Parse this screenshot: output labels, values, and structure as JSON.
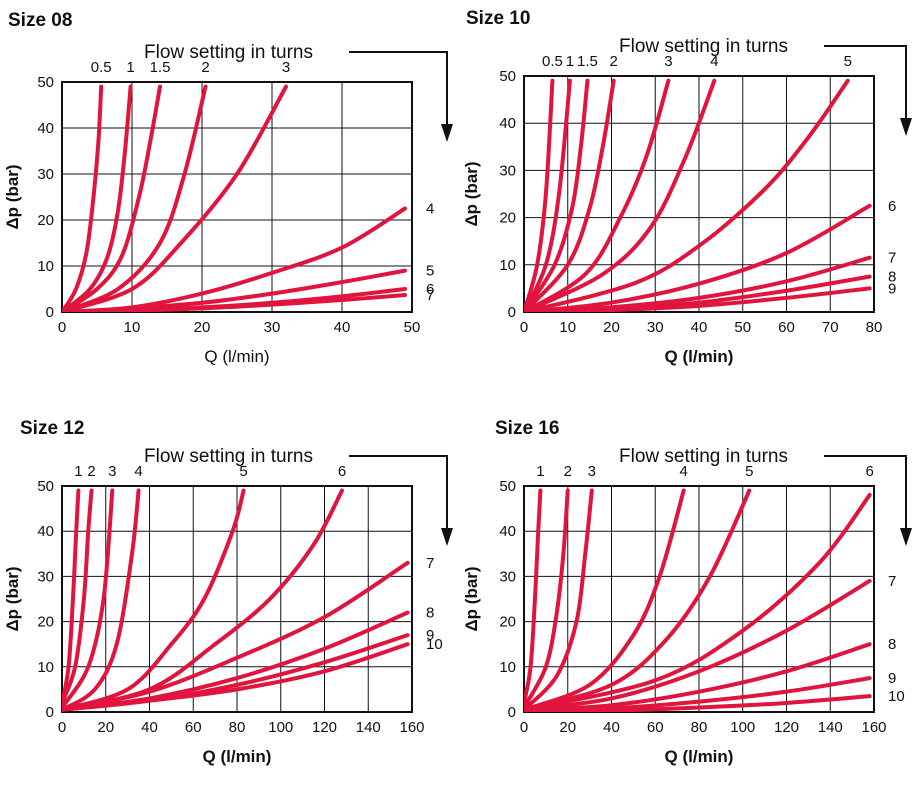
{
  "chart_data": [
    {
      "type": "line",
      "title": "Size 08",
      "annotation": "Flow setting in turns",
      "xlabel": "Q (l/min)",
      "ylabel": "Δp (bar)",
      "xlim": [
        0,
        50
      ],
      "ylim": [
        0,
        50
      ],
      "xticks": [
        0,
        10,
        20,
        30,
        40,
        50
      ],
      "yticks": [
        0,
        10,
        20,
        30,
        40,
        50
      ],
      "grid": true,
      "line_color": "#e0143c",
      "series": [
        {
          "name": "0.5",
          "label_pos": "top",
          "x": [
            0,
            2,
            3.5,
            4.5,
            5.2,
            5.6
          ],
          "y": [
            0,
            5,
            13,
            25,
            37,
            49
          ]
        },
        {
          "name": "1",
          "label_pos": "top",
          "x": [
            0,
            4,
            6.5,
            8,
            9,
            9.8
          ],
          "y": [
            0,
            5,
            12,
            22,
            35,
            49
          ]
        },
        {
          "name": "1.5",
          "label_pos": "top",
          "x": [
            0,
            5,
            8.5,
            11,
            12.6,
            14
          ],
          "y": [
            0,
            5,
            12,
            25,
            37,
            49
          ]
        },
        {
          "name": "2",
          "label_pos": "top",
          "x": [
            0,
            8,
            14,
            17.5,
            20.5
          ],
          "y": [
            0,
            5,
            15,
            30,
            49
          ]
        },
        {
          "name": "3",
          "label_pos": "top",
          "x": [
            0,
            10,
            17,
            25,
            32
          ],
          "y": [
            0,
            5,
            15,
            30,
            49
          ]
        },
        {
          "name": "4",
          "label_pos": "right",
          "x": [
            0,
            10,
            20,
            30,
            40,
            49
          ],
          "y": [
            0,
            1,
            4,
            8.5,
            14,
            22.5
          ]
        },
        {
          "name": "5",
          "label_pos": "right",
          "x": [
            0,
            10,
            20,
            30,
            40,
            49
          ],
          "y": [
            0,
            0.8,
            2,
            4,
            6.5,
            9
          ]
        },
        {
          "name": "6",
          "label_pos": "right",
          "x": [
            0,
            10,
            20,
            30,
            40,
            49
          ],
          "y": [
            0,
            0.4,
            1,
            2,
            3.4,
            5
          ]
        },
        {
          "name": "7",
          "label_pos": "right",
          "x": [
            0,
            10,
            20,
            30,
            40,
            49
          ],
          "y": [
            0,
            0.3,
            0.8,
            1.6,
            2.6,
            3.7
          ]
        }
      ]
    },
    {
      "type": "line",
      "title": "Size 10",
      "annotation": "Flow setting in turns",
      "xlabel": "Q (l/min)",
      "ylabel": "Δp (bar)",
      "xlim": [
        0,
        80
      ],
      "ylim": [
        0,
        50
      ],
      "xticks": [
        0,
        10,
        20,
        30,
        40,
        50,
        60,
        70,
        80
      ],
      "yticks": [
        0,
        10,
        20,
        30,
        40,
        50
      ],
      "grid": true,
      "line_color": "#e0143c",
      "series": [
        {
          "name": "0.5",
          "label_pos": "top",
          "x": [
            0,
            3,
            5,
            6.5
          ],
          "y": [
            0,
            10,
            25,
            49
          ]
        },
        {
          "name": "1",
          "label_pos": "top",
          "x": [
            0,
            5,
            8,
            10.5
          ],
          "y": [
            0,
            10,
            25,
            49
          ]
        },
        {
          "name": "1.5",
          "label_pos": "top",
          "x": [
            0,
            7,
            11,
            13,
            14.5
          ],
          "y": [
            0,
            10,
            22,
            35,
            49
          ]
        },
        {
          "name": "2",
          "label_pos": "top",
          "x": [
            0,
            10,
            15,
            18,
            20.5
          ],
          "y": [
            0,
            10,
            22,
            35,
            49
          ]
        },
        {
          "name": "3",
          "label_pos": "top",
          "x": [
            0,
            14,
            22,
            28,
            33
          ],
          "y": [
            0,
            8,
            20,
            33,
            49
          ]
        },
        {
          "name": "4",
          "label_pos": "top",
          "x": [
            0,
            18,
            29,
            37,
            43.5
          ],
          "y": [
            0,
            8,
            18,
            33,
            49
          ]
        },
        {
          "name": "5",
          "label_pos": "top",
          "x": [
            0,
            25,
            40,
            55,
            65,
            74
          ],
          "y": [
            0,
            6,
            14,
            26,
            37,
            49
          ]
        },
        {
          "name": "6",
          "label_pos": "right",
          "x": [
            0,
            20,
            40,
            60,
            79
          ],
          "y": [
            0,
            2,
            6,
            12.5,
            22.5
          ]
        },
        {
          "name": "7",
          "label_pos": "right",
          "x": [
            0,
            20,
            40,
            60,
            79
          ],
          "y": [
            0,
            1,
            3,
            6.5,
            11.5
          ]
        },
        {
          "name": "8",
          "label_pos": "right",
          "x": [
            0,
            20,
            40,
            60,
            79
          ],
          "y": [
            0,
            0.6,
            2,
            4.5,
            7.5
          ]
        },
        {
          "name": "9",
          "label_pos": "right",
          "x": [
            0,
            20,
            40,
            60,
            79
          ],
          "y": [
            0,
            0.4,
            1.3,
            3,
            5
          ]
        }
      ]
    },
    {
      "type": "line",
      "title": "Size 12",
      "annotation": "Flow setting in turns",
      "xlabel": "Q (l/min)",
      "ylabel": "Δp (bar)",
      "xlim": [
        0,
        160
      ],
      "ylim": [
        0,
        50
      ],
      "xticks": [
        0,
        20,
        40,
        60,
        80,
        100,
        120,
        140,
        160
      ],
      "yticks": [
        0,
        10,
        20,
        30,
        40,
        50
      ],
      "grid": true,
      "line_color": "#e0143c",
      "series": [
        {
          "name": "1",
          "label_pos": "top",
          "x": [
            0,
            3,
            5,
            6.5,
            7.5
          ],
          "y": [
            2,
            10,
            25,
            40,
            49
          ]
        },
        {
          "name": "2",
          "label_pos": "top",
          "x": [
            0,
            6,
            10,
            12,
            13.5
          ],
          "y": [
            2,
            10,
            25,
            40,
            49
          ]
        },
        {
          "name": "3",
          "label_pos": "top",
          "x": [
            0,
            12,
            19,
            23
          ],
          "y": [
            1,
            10,
            25,
            49
          ]
        },
        {
          "name": "4",
          "label_pos": "top",
          "x": [
            0,
            15,
            25,
            32,
            35
          ],
          "y": [
            0.5,
            5,
            15,
            35,
            49
          ]
        },
        {
          "name": "5",
          "label_pos": "top",
          "x": [
            0,
            30,
            50,
            65,
            78,
            83
          ],
          "y": [
            0.5,
            5,
            15,
            25,
            40,
            49
          ]
        },
        {
          "name": "6",
          "label_pos": "top",
          "x": [
            0,
            40,
            70,
            95,
            115,
            128
          ],
          "y": [
            0.5,
            5,
            15,
            25,
            37,
            49
          ]
        },
        {
          "name": "7",
          "label_pos": "right",
          "x": [
            0,
            40,
            80,
            120,
            158
          ],
          "y": [
            0.5,
            4.5,
            12,
            21,
            33
          ]
        },
        {
          "name": "8",
          "label_pos": "right",
          "x": [
            0,
            40,
            80,
            120,
            158
          ],
          "y": [
            0.5,
            3,
            7.5,
            14,
            22
          ]
        },
        {
          "name": "9",
          "label_pos": "right",
          "x": [
            0,
            40,
            80,
            120,
            158
          ],
          "y": [
            0.5,
            2.5,
            6,
            11,
            17
          ]
        },
        {
          "name": "10",
          "label_pos": "right",
          "x": [
            0,
            40,
            80,
            120,
            158
          ],
          "y": [
            0.5,
            2.5,
            5,
            9,
            15
          ]
        }
      ]
    },
    {
      "type": "line",
      "title": "Size 16",
      "annotation": "Flow setting in turns",
      "xlabel": "Q (l/min)",
      "ylabel": "Δp (bar)",
      "xlim": [
        0,
        160
      ],
      "ylim": [
        0,
        50
      ],
      "xticks": [
        0,
        20,
        40,
        60,
        80,
        100,
        120,
        140,
        160
      ],
      "yticks": [
        0,
        10,
        20,
        30,
        40,
        50
      ],
      "grid": true,
      "line_color": "#e0143c",
      "series": [
        {
          "name": "1",
          "label_pos": "top",
          "x": [
            0,
            3,
            5,
            6.5,
            7.5
          ],
          "y": [
            2,
            10,
            25,
            40,
            49
          ]
        },
        {
          "name": "2",
          "label_pos": "top",
          "x": [
            0,
            10,
            15,
            18,
            20
          ],
          "y": [
            1,
            10,
            22,
            35,
            49
          ]
        },
        {
          "name": "3",
          "label_pos": "top",
          "x": [
            0,
            15,
            24,
            28,
            31
          ],
          "y": [
            0.5,
            8,
            20,
            35,
            49
          ]
        },
        {
          "name": "4",
          "label_pos": "top",
          "x": [
            0,
            30,
            50,
            62,
            73
          ],
          "y": [
            0.5,
            6,
            17,
            30,
            49
          ]
        },
        {
          "name": "5",
          "label_pos": "top",
          "x": [
            0,
            40,
            65,
            85,
            103
          ],
          "y": [
            0.5,
            6,
            16,
            30,
            49
          ]
        },
        {
          "name": "6",
          "label_pos": "top",
          "x": [
            0,
            60,
            100,
            135,
            158
          ],
          "y": [
            0.5,
            7,
            18,
            33,
            48
          ]
        },
        {
          "name": "7",
          "label_pos": "right",
          "x": [
            0,
            40,
            80,
            120,
            158
          ],
          "y": [
            0.5,
            3,
            9,
            18,
            29
          ]
        },
        {
          "name": "8",
          "label_pos": "right",
          "x": [
            0,
            40,
            80,
            120,
            158
          ],
          "y": [
            0.3,
            1.5,
            4.5,
            9,
            15
          ]
        },
        {
          "name": "9",
          "label_pos": "right",
          "x": [
            0,
            40,
            80,
            120,
            158
          ],
          "y": [
            0.2,
            0.8,
            2.3,
            4.5,
            7.5
          ]
        },
        {
          "name": "10",
          "label_pos": "right",
          "x": [
            0,
            40,
            80,
            120,
            158
          ],
          "y": [
            0.1,
            0.3,
            1,
            2,
            3.5
          ]
        }
      ]
    }
  ]
}
